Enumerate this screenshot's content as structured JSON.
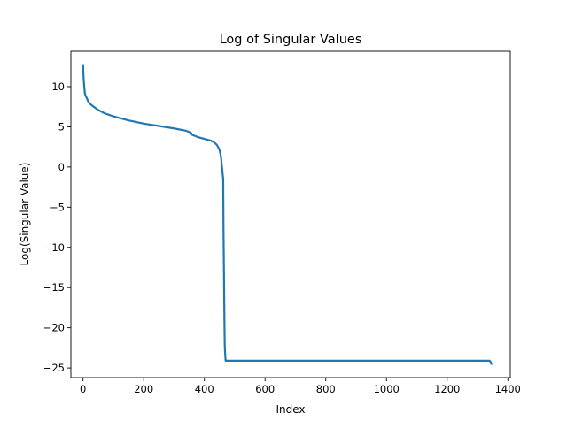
{
  "chart_data": {
    "type": "line",
    "title": "Log of Singular Values",
    "xlabel": "Index",
    "ylabel": "Log(Singular Value)",
    "xlim": [
      -40,
      1408
    ],
    "ylim": [
      -26.2,
      14.4
    ],
    "xticks": [
      0,
      200,
      400,
      600,
      800,
      1000,
      1200,
      1400
    ],
    "yticks": [
      10,
      5,
      0,
      -5,
      -10,
      -15,
      -20,
      -25
    ],
    "xtick_labels": [
      "0",
      "200",
      "400",
      "600",
      "800",
      "1000",
      "1200",
      "1400"
    ],
    "ytick_labels": [
      "10",
      "5",
      "0",
      "−5",
      "−10",
      "−15",
      "−20",
      "−25"
    ],
    "grid": false,
    "legend": "none",
    "series": [
      {
        "color": "#1f77b4",
        "x": [
          0,
          2,
          4,
          6,
          8,
          12,
          18,
          25,
          35,
          50,
          70,
          100,
          150,
          200,
          250,
          300,
          340,
          355,
          360,
          380,
          400,
          420,
          430,
          440,
          445,
          450,
          453,
          455,
          457,
          459,
          460,
          462,
          463,
          465,
          466,
          467,
          468,
          470,
          475,
          480,
          600,
          800,
          1000,
          1200,
          1340,
          1344,
          1346
        ],
        "y": [
          12.8,
          11.0,
          10.0,
          9.2,
          8.9,
          8.6,
          8.1,
          7.8,
          7.5,
          7.1,
          6.7,
          6.3,
          5.8,
          5.4,
          5.1,
          4.8,
          4.5,
          4.3,
          4.0,
          3.7,
          3.5,
          3.3,
          3.1,
          2.8,
          2.5,
          2.1,
          1.6,
          1.2,
          0.3,
          -0.3,
          -0.8,
          -1.5,
          -8.0,
          -15.0,
          -19.0,
          -22.0,
          -23.0,
          -24.1,
          -24.1,
          -24.1,
          -24.1,
          -24.1,
          -24.1,
          -24.1,
          -24.1,
          -24.3,
          -24.6
        ]
      }
    ]
  }
}
